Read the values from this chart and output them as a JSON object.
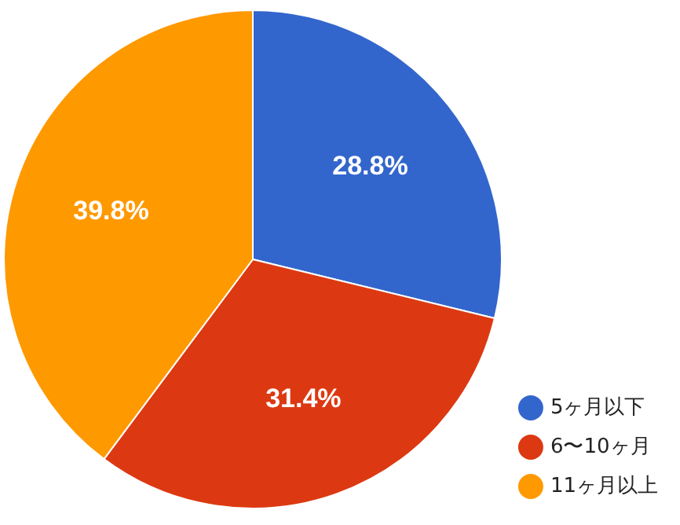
{
  "chart_data": {
    "type": "pie",
    "categories": [
      "5ヶ月以下",
      "6〜10ヶ月",
      "11ヶ月以上"
    ],
    "values": [
      28.8,
      31.4,
      39.8
    ],
    "colors": [
      "#3366cc",
      "#dc3912",
      "#ff9900"
    ],
    "value_labels": [
      "28.8%",
      "31.4%",
      "39.8%"
    ],
    "legend": "bottom right"
  }
}
